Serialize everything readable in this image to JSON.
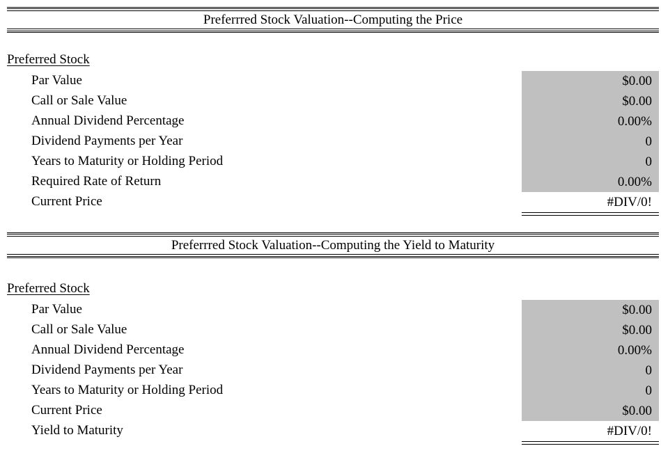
{
  "price_section": {
    "title": "Preferrred Stock Valuation--Computing the Price",
    "subheading": "Preferred Stock",
    "rows": [
      {
        "label": "Par Value",
        "value": "$0.00"
      },
      {
        "label": "Call or Sale Value",
        "value": "$0.00"
      },
      {
        "label": "Annual Dividend Percentage",
        "value": "0.00%"
      },
      {
        "label": "Dividend Payments per Year",
        "value": "0"
      },
      {
        "label": "Years to Maturity or Holding Period",
        "value": "0"
      },
      {
        "label": "Required Rate of Return",
        "value": "0.00%"
      },
      {
        "label": "Current Price",
        "value": "#DIV/0!"
      }
    ]
  },
  "ytm_section": {
    "title": "Preferrred Stock Valuation--Computing the Yield to Maturity",
    "subheading": "Preferred Stock",
    "rows": [
      {
        "label": "Par Value",
        "value": "$0.00"
      },
      {
        "label": "Call or Sale Value",
        "value": "$0.00"
      },
      {
        "label": "Annual Dividend Percentage",
        "value": "0.00%"
      },
      {
        "label": "Dividend Payments per Year",
        "value": "0"
      },
      {
        "label": "Years to Maturity or Holding Period",
        "value": "0"
      },
      {
        "label": "Current Price",
        "value": "$0.00"
      },
      {
        "label": "Yield to Maturity",
        "value": "#DIV/0!"
      }
    ]
  },
  "colors": {
    "input_cell": "#c0c0c0",
    "text": "#000000",
    "background": "#ffffff"
  }
}
